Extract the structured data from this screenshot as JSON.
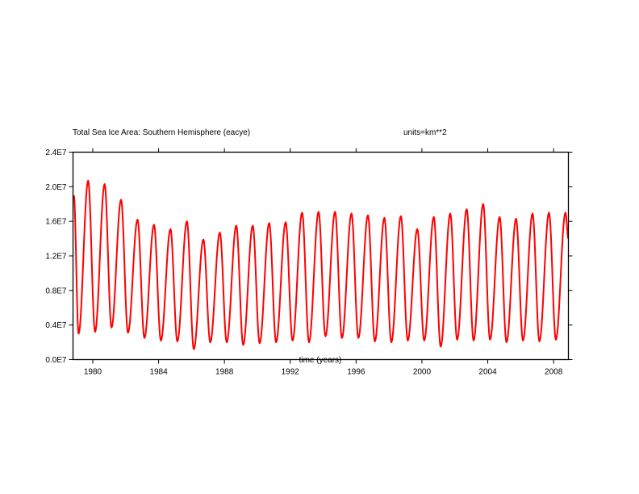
{
  "chart_data": {
    "type": "line",
    "title": "Total Sea Ice Area: Southern Hemisphere (eacye)",
    "units_label": "units=km**2",
    "xlabel": "time (years)",
    "ylabel": "",
    "xlim": [
      1978.8,
      2008.9
    ],
    "ylim": [
      0.0,
      24000000
    ],
    "x_ticks": [
      1980,
      1984,
      1988,
      1992,
      1996,
      2000,
      2004,
      2008
    ],
    "x_tick_labels": [
      "1980",
      "1984",
      "1988",
      "1992",
      "1996",
      "2000",
      "2004",
      "2008"
    ],
    "y_ticks": [
      0,
      4000000,
      8000000,
      12000000,
      16000000,
      20000000,
      24000000
    ],
    "y_tick_labels": [
      "0.0E7",
      "0.4E7",
      "0.8E7",
      "1.2E7",
      "1.6E7",
      "2.0E7",
      "2.4E7"
    ],
    "grid": false,
    "series": [
      {
        "color": "#ff0000",
        "annual_points": [
          {
            "year": 1979,
            "max": 20700000,
            "min": 3000000
          },
          {
            "year": 1980,
            "max": 20300000,
            "min": 3200000
          },
          {
            "year": 1981,
            "max": 18500000,
            "min": 3700000
          },
          {
            "year": 1982,
            "max": 16200000,
            "min": 3100000
          },
          {
            "year": 1983,
            "max": 15600000,
            "min": 2500000
          },
          {
            "year": 1984,
            "max": 15100000,
            "min": 2200000
          },
          {
            "year": 1985,
            "max": 16000000,
            "min": 2100000
          },
          {
            "year": 1986,
            "max": 13900000,
            "min": 1200000
          },
          {
            "year": 1987,
            "max": 14700000,
            "min": 2000000
          },
          {
            "year": 1988,
            "max": 15500000,
            "min": 2000000
          },
          {
            "year": 1989,
            "max": 15500000,
            "min": 1700000
          },
          {
            "year": 1990,
            "max": 15800000,
            "min": 1900000
          },
          {
            "year": 1991,
            "max": 15900000,
            "min": 2000000
          },
          {
            "year": 1992,
            "max": 17000000,
            "min": 2200000
          },
          {
            "year": 1993,
            "max": 17100000,
            "min": 2000000
          },
          {
            "year": 1994,
            "max": 17100000,
            "min": 2700000
          },
          {
            "year": 1995,
            "max": 16900000,
            "min": 2500000
          },
          {
            "year": 1996,
            "max": 16700000,
            "min": 2500000
          },
          {
            "year": 1997,
            "max": 16400000,
            "min": 2100000
          },
          {
            "year": 1998,
            "max": 16600000,
            "min": 2000000
          },
          {
            "year": 1999,
            "max": 15100000,
            "min": 2200000
          },
          {
            "year": 2000,
            "max": 16500000,
            "min": 2200000
          },
          {
            "year": 2001,
            "max": 16900000,
            "min": 1500000
          },
          {
            "year": 2002,
            "max": 17400000,
            "min": 2300000
          },
          {
            "year": 2003,
            "max": 18000000,
            "min": 2200000
          },
          {
            "year": 2004,
            "max": 16500000,
            "min": 2300000
          },
          {
            "year": 2005,
            "max": 16300000,
            "min": 2000000
          },
          {
            "year": 2006,
            "max": 16900000,
            "min": 2200000
          },
          {
            "year": 2007,
            "max": 17000000,
            "min": 2100000
          },
          {
            "year": 2008,
            "max": 17000000,
            "min": 2300000
          }
        ],
        "start": {
          "x": 1978.85,
          "y": 19000000
        },
        "end": {
          "x": 2008.9,
          "y": 14000000
        }
      }
    ]
  }
}
